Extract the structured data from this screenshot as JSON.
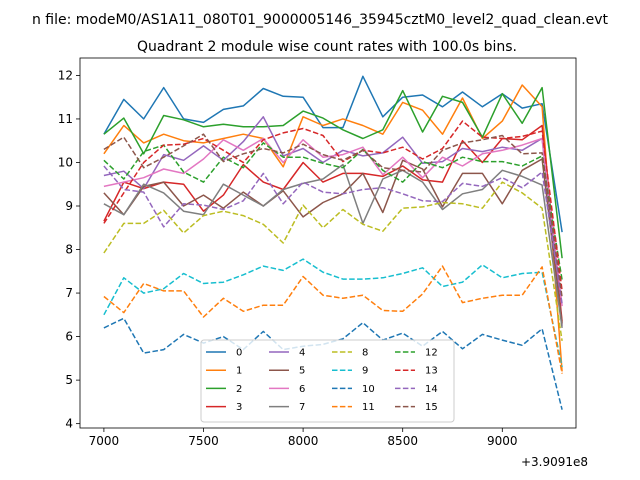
{
  "chart_data": {
    "type": "line",
    "suptitle": "n file: modeM0/AS1A11_080T01_9000005146_35945cztM0_level2_quad_clean.evt",
    "title": "Quadrant 2 module wise count rates with 100.0s bins.",
    "xlabel": "",
    "ylabel": "",
    "x_offset_label": "+3.9091e8",
    "xlim": [
      6880,
      9370
    ],
    "ylim": [
      3.9,
      12.4
    ],
    "xticks": [
      7000,
      7500,
      8000,
      8500,
      9000
    ],
    "yticks": [
      4,
      5,
      6,
      7,
      8,
      9,
      10,
      11,
      12
    ],
    "legend_position": "lower-center",
    "legend_columns": 4,
    "x": [
      7000,
      7100,
      7200,
      7300,
      7400,
      7500,
      7600,
      7700,
      7800,
      7900,
      8000,
      8100,
      8200,
      8300,
      8400,
      8500,
      8600,
      8700,
      8800,
      8900,
      9000,
      9100,
      9200,
      9300
    ],
    "series": [
      {
        "name": "0",
        "color": "#1f77b4",
        "dash": "solid",
        "values": [
          10.65,
          11.45,
          11.0,
          11.72,
          11.0,
          10.92,
          11.22,
          11.3,
          11.7,
          11.52,
          11.5,
          10.8,
          10.8,
          11.98,
          11.05,
          11.5,
          11.55,
          11.28,
          11.62,
          11.28,
          11.58,
          11.25,
          11.35,
          8.4
        ]
      },
      {
        "name": "1",
        "color": "#ff7f0e",
        "dash": "solid",
        "values": [
          10.2,
          10.85,
          10.45,
          10.65,
          10.5,
          10.45,
          10.55,
          10.65,
          10.55,
          9.9,
          11.05,
          10.85,
          11.0,
          10.85,
          10.65,
          11.38,
          11.2,
          10.65,
          11.48,
          10.55,
          10.95,
          11.78,
          11.28,
          5.2
        ]
      },
      {
        "name": "2",
        "color": "#2ca02c",
        "dash": "solid",
        "values": [
          10.65,
          11.02,
          10.2,
          11.08,
          10.98,
          10.82,
          10.88,
          10.82,
          10.82,
          10.85,
          11.18,
          11.02,
          10.75,
          10.55,
          10.75,
          11.65,
          10.7,
          11.52,
          11.38,
          10.58,
          11.58,
          10.9,
          11.72,
          7.8
        ]
      },
      {
        "name": "3",
        "color": "#d62728",
        "dash": "solid",
        "values": [
          8.65,
          9.55,
          9.4,
          9.55,
          9.5,
          8.88,
          9.25,
          9.95,
          9.55,
          9.38,
          10.0,
          9.55,
          9.75,
          9.75,
          9.68,
          9.92,
          9.6,
          9.55,
          10.5,
          10.0,
          10.55,
          10.52,
          10.85,
          6.35
        ]
      },
      {
        "name": "4",
        "color": "#9467bd",
        "dash": "solid",
        "values": [
          9.7,
          9.8,
          9.4,
          10.18,
          10.05,
          10.38,
          10.05,
          10.48,
          11.05,
          10.15,
          10.32,
          10.0,
          10.28,
          10.15,
          10.22,
          10.58,
          9.98,
          10.02,
          10.32,
          10.25,
          10.35,
          10.28,
          10.55,
          6.25
        ]
      },
      {
        "name": "5",
        "color": "#8c564b",
        "dash": "solid",
        "values": [
          9.3,
          8.8,
          9.45,
          9.55,
          9.0,
          9.25,
          8.95,
          9.32,
          9.0,
          9.35,
          8.75,
          9.08,
          9.28,
          9.75,
          8.85,
          10.05,
          9.85,
          8.98,
          9.75,
          9.75,
          9.05,
          9.82,
          10.08,
          6.3
        ]
      },
      {
        "name": "6",
        "color": "#e377c2",
        "dash": "solid",
        "values": [
          9.45,
          9.55,
          9.65,
          9.85,
          9.75,
          10.08,
          10.52,
          10.28,
          10.55,
          10.0,
          10.52,
          10.12,
          10.18,
          10.35,
          9.72,
          10.12,
          9.65,
          10.12,
          9.92,
          10.2,
          10.28,
          10.4,
          10.55,
          6.7
        ]
      },
      {
        "name": "7",
        "color": "#7f7f7f",
        "dash": "solid",
        "values": [
          9.05,
          8.8,
          9.5,
          9.3,
          8.88,
          8.8,
          9.5,
          9.25,
          9.0,
          9.38,
          9.52,
          9.62,
          9.95,
          8.6,
          9.62,
          9.82,
          9.55,
          8.92,
          9.28,
          9.38,
          9.82,
          9.68,
          9.48,
          6.2
        ]
      },
      {
        "name": "8",
        "color": "#bcbd22",
        "dash": "dashed",
        "values": [
          7.92,
          8.6,
          8.6,
          8.9,
          8.38,
          8.78,
          8.88,
          8.78,
          8.58,
          8.15,
          9.02,
          8.5,
          8.92,
          8.58,
          8.42,
          8.95,
          8.98,
          9.08,
          9.05,
          8.95,
          9.55,
          9.3,
          8.95,
          5.9
        ]
      },
      {
        "name": "9",
        "color": "#17becf",
        "dash": "dashed",
        "values": [
          6.5,
          7.35,
          7.0,
          7.1,
          7.45,
          7.22,
          7.25,
          7.42,
          7.62,
          7.52,
          7.78,
          7.48,
          7.32,
          7.32,
          7.35,
          7.45,
          7.58,
          7.15,
          7.25,
          7.65,
          7.35,
          7.45,
          7.48,
          5.3
        ]
      },
      {
        "name": "10",
        "color": "#1f77b4",
        "dash": "dashed",
        "values": [
          6.2,
          6.42,
          5.62,
          5.7,
          6.05,
          5.85,
          6.0,
          5.7,
          6.12,
          5.7,
          5.78,
          5.82,
          5.95,
          6.32,
          5.92,
          6.08,
          5.78,
          6.12,
          5.72,
          6.05,
          5.92,
          5.8,
          6.18,
          4.32
        ]
      },
      {
        "name": "11",
        "color": "#ff7f0e",
        "dash": "dashed",
        "values": [
          6.92,
          6.55,
          7.22,
          7.05,
          7.05,
          6.45,
          6.88,
          6.58,
          6.72,
          6.72,
          7.38,
          6.95,
          6.88,
          6.95,
          6.6,
          6.58,
          6.98,
          7.62,
          6.78,
          6.88,
          6.95,
          6.95,
          7.6,
          5.15
        ]
      },
      {
        "name": "12",
        "color": "#2ca02c",
        "dash": "dashed",
        "values": [
          10.05,
          9.62,
          10.25,
          10.4,
          9.78,
          9.55,
          10.12,
          9.88,
          10.45,
          10.12,
          10.12,
          9.98,
          9.88,
          10.3,
          9.82,
          9.55,
          10.02,
          9.88,
          10.12,
          10.02,
          10.02,
          9.92,
          10.15,
          7.3
        ]
      },
      {
        "name": "13",
        "color": "#d62728",
        "dash": "dashed",
        "values": [
          8.6,
          9.3,
          10.0,
          10.4,
          10.42,
          10.55,
          10.28,
          10.0,
          10.52,
          10.68,
          10.78,
          10.62,
          10.02,
          10.28,
          10.22,
          10.35,
          10.08,
          10.32,
          10.95,
          10.58,
          10.55,
          10.6,
          10.72,
          7.05
        ]
      },
      {
        "name": "14",
        "color": "#9467bd",
        "dash": "dashed",
        "values": [
          9.92,
          9.38,
          9.32,
          8.52,
          9.05,
          9.02,
          8.92,
          9.12,
          9.75,
          9.05,
          9.55,
          9.32,
          9.28,
          9.38,
          9.42,
          9.28,
          9.12,
          9.1,
          9.52,
          9.45,
          9.65,
          9.42,
          9.78,
          6.75
        ]
      },
      {
        "name": "15",
        "color": "#8c564b",
        "dash": "dashed",
        "values": [
          10.3,
          10.58,
          9.88,
          10.12,
          10.38,
          10.65,
          10.02,
          10.2,
          10.32,
          10.22,
          10.42,
          10.18,
          10.05,
          10.28,
          9.88,
          9.82,
          9.78,
          10.28,
          10.45,
          10.52,
          10.62,
          10.2,
          10.22,
          6.9
        ]
      }
    ]
  }
}
